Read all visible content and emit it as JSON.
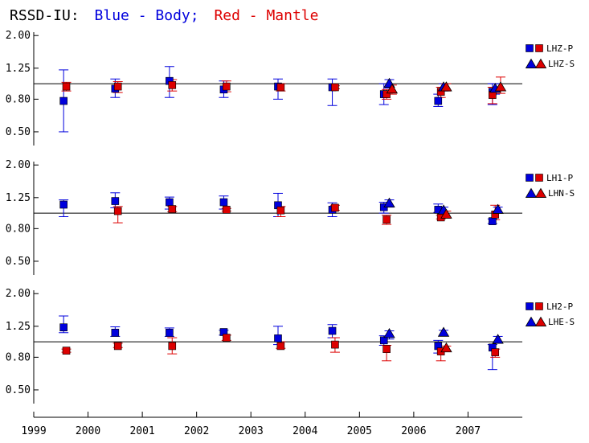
{
  "title": {
    "prefix": "RSSD-IU:",
    "blue_text": "Blue - Body;",
    "red_text": "Red - Mantle"
  },
  "chart_data": {
    "type": "scatter",
    "x_ticks": [
      "1999",
      "2000",
      "2001",
      "2002",
      "2003",
      "2004",
      "2005",
      "2006",
      "2007"
    ],
    "xlim": [
      1999,
      2008
    ],
    "y_ticks": [
      "2.00",
      "1.25",
      "0.80",
      "0.50"
    ],
    "y_tick_values": [
      2.0,
      1.25,
      0.8,
      0.5
    ],
    "y_scale": "log",
    "ylim": [
      0.42,
      2.1
    ],
    "reference_line": 1.0,
    "colors": {
      "body": "#0000dd",
      "mantle": "#dd0000",
      "outline": "#000000",
      "axis": "#000000"
    },
    "panels": [
      {
        "legend": [
          "LHZ-P",
          "LHZ-S"
        ],
        "series": [
          {
            "name": "LHZ-P",
            "role": "body",
            "marker": "square",
            "points": [
              [
                1999.55,
                0.78,
                0.5,
                1.22
              ],
              [
                2000.5,
                0.93,
                0.82,
                1.07
              ],
              [
                2001.5,
                1.04,
                0.82,
                1.28
              ],
              [
                2002.5,
                0.92,
                0.82,
                1.04
              ],
              [
                2003.5,
                0.96,
                0.8,
                1.07
              ],
              [
                2004.5,
                0.95,
                0.73,
                1.07
              ],
              [
                2005.45,
                0.86,
                0.74,
                1.0
              ],
              [
                2006.45,
                0.78,
                0.72,
                0.86
              ],
              [
                2007.45,
                0.89,
                0.74,
                1.0
              ]
            ]
          },
          {
            "name": "LHZ-P",
            "role": "mantle",
            "marker": "square",
            "points": [
              [
                1999.6,
                0.96,
                0.9,
                1.02
              ],
              [
                2000.55,
                0.96,
                0.88,
                1.03
              ],
              [
                2001.55,
                0.98,
                0.9,
                1.06
              ],
              [
                2002.55,
                0.96,
                0.89,
                1.04
              ],
              [
                2003.55,
                0.95,
                0.9,
                1.0
              ],
              [
                2004.55,
                0.95,
                0.93,
                0.97
              ],
              [
                2005.5,
                0.86,
                0.8,
                0.92
              ],
              [
                2006.5,
                0.89,
                0.82,
                0.95
              ],
              [
                2007.45,
                0.85,
                0.75,
                0.95
              ]
            ]
          },
          {
            "name": "LHZ-S",
            "role": "body",
            "marker": "triangle",
            "points": [
              [
                2005.55,
                1.0,
                0.94,
                1.06
              ],
              [
                2006.55,
                0.95,
                0.9,
                1.0
              ],
              [
                2007.5,
                0.93,
                0.86,
                1.0
              ]
            ]
          },
          {
            "name": "LHZ-S",
            "role": "mantle",
            "marker": "triangle",
            "points": [
              [
                2005.6,
                0.92,
                0.86,
                0.98
              ],
              [
                2006.6,
                0.95,
                0.9,
                1.0
              ],
              [
                2007.6,
                0.95,
                0.87,
                1.1
              ]
            ]
          }
        ]
      },
      {
        "legend": [
          "LH1-P",
          "LHN-S"
        ],
        "series": [
          {
            "name": "LH1-P",
            "role": "body",
            "marker": "square",
            "points": [
              [
                1999.55,
                1.13,
                0.95,
                1.21
              ],
              [
                2000.5,
                1.19,
                1.08,
                1.34
              ],
              [
                2001.5,
                1.17,
                1.06,
                1.26
              ],
              [
                2002.5,
                1.17,
                1.06,
                1.28
              ],
              [
                2003.5,
                1.12,
                0.95,
                1.33
              ],
              [
                2004.5,
                1.05,
                0.95,
                1.16
              ],
              [
                2005.45,
                1.09,
                1.0,
                1.17
              ],
              [
                2006.45,
                1.05,
                1.01,
                1.14
              ],
              [
                2007.45,
                0.89,
                0.86,
                0.92
              ]
            ]
          },
          {
            "name": "LH1-P",
            "role": "mantle",
            "marker": "square",
            "points": [
              [
                2000.55,
                1.03,
                0.87,
                1.1
              ],
              [
                2001.55,
                1.06,
                1.02,
                1.1
              ],
              [
                2002.55,
                1.05,
                1.03,
                1.07
              ],
              [
                2003.55,
                1.04,
                0.95,
                1.1
              ],
              [
                2004.55,
                1.08,
                1.04,
                1.12
              ],
              [
                2005.5,
                0.91,
                0.85,
                0.97
              ],
              [
                2006.5,
                0.94,
                0.92,
                0.97
              ],
              [
                2007.5,
                0.98,
                0.91,
                1.12
              ]
            ]
          },
          {
            "name": "LHN-S",
            "role": "body",
            "marker": "triangle",
            "points": [
              [
                2005.55,
                1.15,
                1.09,
                1.21
              ],
              [
                2006.55,
                1.04,
                0.99,
                1.09
              ],
              [
                2007.55,
                1.05,
                1.01,
                1.09
              ]
            ]
          },
          {
            "name": "LHN-S",
            "role": "mantle",
            "marker": "triangle",
            "points": [
              [
                2006.6,
                0.98,
                0.93,
                1.03
              ]
            ]
          }
        ]
      },
      {
        "legend": [
          "LH2-P",
          "LHE-S"
        ],
        "series": [
          {
            "name": "LH2-P",
            "role": "body",
            "marker": "square",
            "points": [
              [
                1999.55,
                1.23,
                1.14,
                1.45
              ],
              [
                2000.5,
                1.14,
                1.08,
                1.24
              ],
              [
                2001.5,
                1.14,
                1.08,
                1.22
              ],
              [
                2002.5,
                1.15,
                1.1,
                1.18
              ],
              [
                2003.5,
                1.05,
                0.96,
                1.25
              ],
              [
                2004.5,
                1.17,
                1.06,
                1.28
              ],
              [
                2005.45,
                1.02,
                0.95,
                1.09
              ],
              [
                2006.45,
                0.94,
                0.85,
                1.02
              ],
              [
                2007.45,
                0.92,
                0.67,
                0.96
              ]
            ]
          },
          {
            "name": "LH2-P",
            "role": "mantle",
            "marker": "square",
            "points": [
              [
                1999.6,
                0.88,
                0.86,
                0.9
              ],
              [
                2000.55,
                0.94,
                0.92,
                0.98
              ],
              [
                2001.55,
                0.94,
                0.84,
                1.06
              ],
              [
                2002.55,
                1.06,
                1.02,
                1.1
              ],
              [
                2003.55,
                0.94,
                0.91,
                1.0
              ],
              [
                2004.55,
                0.96,
                0.86,
                1.06
              ],
              [
                2005.5,
                0.9,
                0.76,
                0.95
              ],
              [
                2006.5,
                0.87,
                0.76,
                0.92
              ],
              [
                2007.5,
                0.86,
                0.8,
                0.9
              ]
            ]
          },
          {
            "name": "LHE-S",
            "role": "body",
            "marker": "triangle",
            "points": [
              [
                2005.55,
                1.12,
                1.04,
                1.17
              ],
              [
                2006.55,
                1.14,
                1.09,
                1.18
              ],
              [
                2007.55,
                1.03,
                0.98,
                1.08
              ]
            ]
          },
          {
            "name": "LHE-S",
            "role": "mantle",
            "marker": "triangle",
            "points": [
              [
                2006.6,
                0.91,
                0.88,
                0.94
              ]
            ]
          }
        ]
      }
    ]
  }
}
